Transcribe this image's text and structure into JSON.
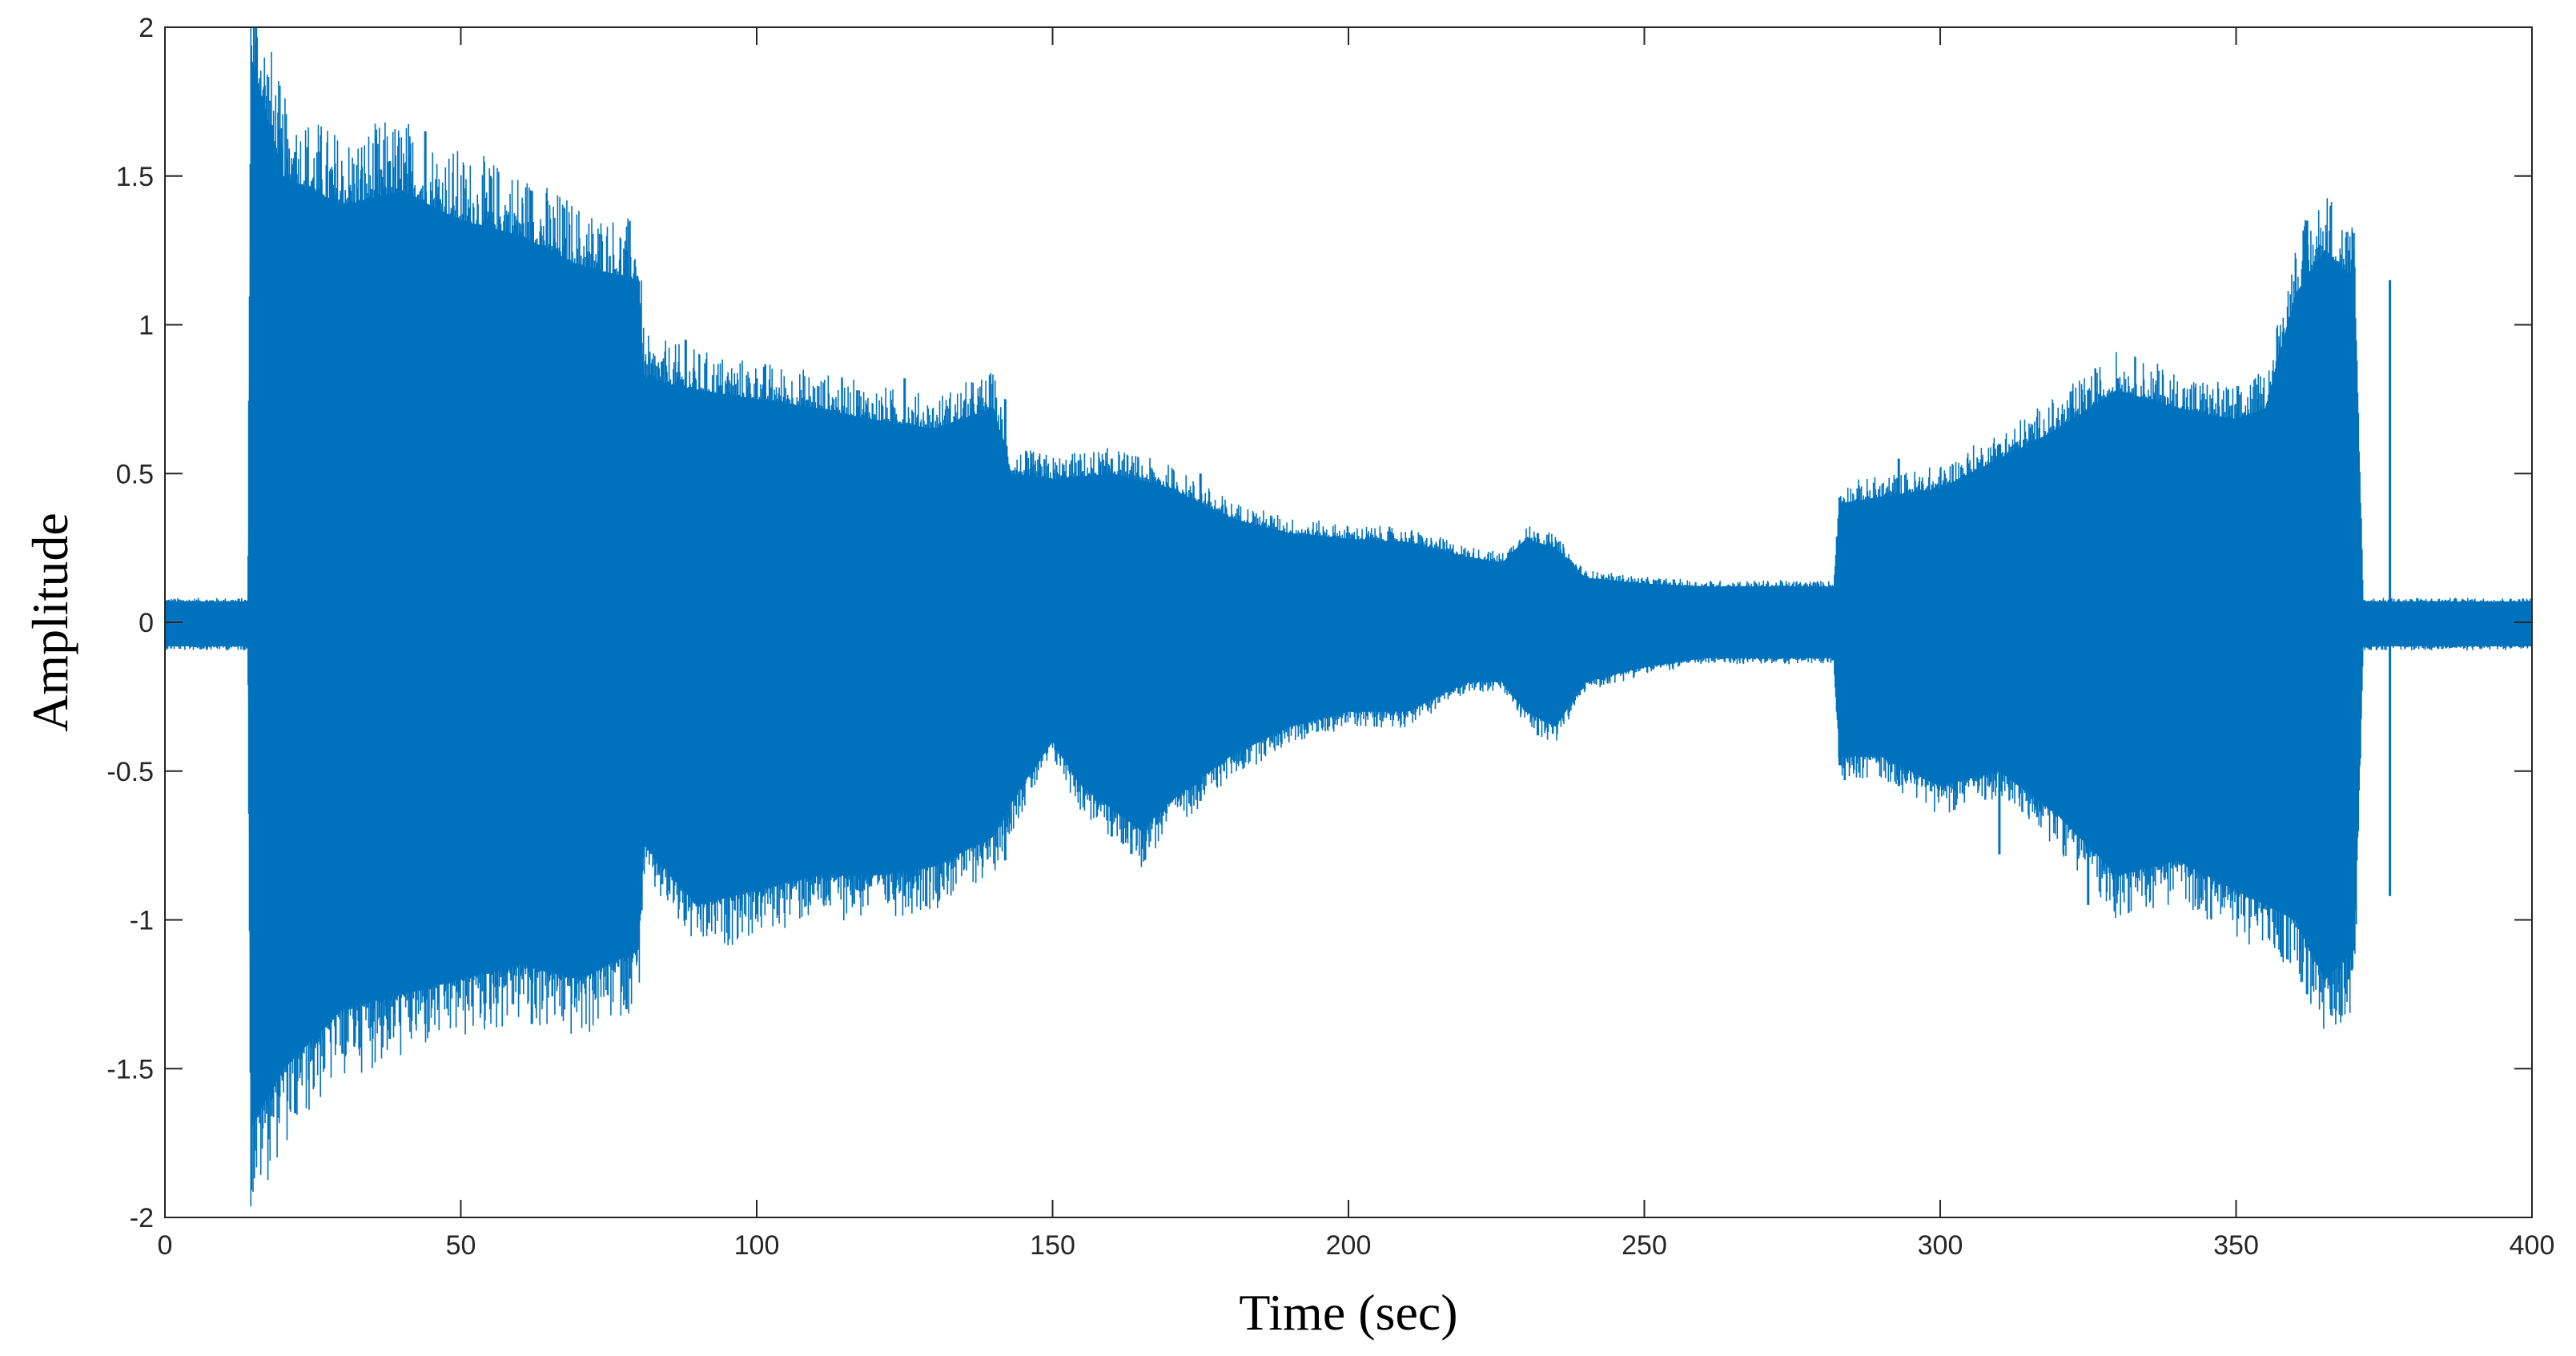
{
  "chart_data": {
    "type": "line",
    "title": "",
    "xlabel": "Time (sec)",
    "ylabel": "Amplitude",
    "xlim": [
      0,
      400
    ],
    "ylim": [
      -2,
      2
    ],
    "xticks": [
      0,
      50,
      100,
      150,
      200,
      250,
      300,
      350,
      400
    ],
    "yticks": [
      2,
      1.5,
      1,
      0.5,
      0,
      -0.5,
      -1,
      -1.5,
      -2
    ],
    "xtick_labels": [
      "0",
      "50",
      "100",
      "150",
      "200",
      "250",
      "300",
      "350",
      "400"
    ],
    "ytick_labels": [
      "2",
      "1.5",
      "1",
      "0.5",
      "0",
      "-0.5",
      "-1",
      "-1.5",
      "-2"
    ],
    "grid": false,
    "legend": "none",
    "series_color": "#0072BD",
    "series": [
      {
        "envelope_upper": [
          [
            0,
            0.07
          ],
          [
            14,
            0.07
          ],
          [
            14.5,
            1.9
          ],
          [
            20,
            1.5
          ],
          [
            30,
            1.4
          ],
          [
            40,
            1.45
          ],
          [
            50,
            1.35
          ],
          [
            60,
            1.3
          ],
          [
            70,
            1.2
          ],
          [
            80,
            1.15
          ],
          [
            81,
            0.82
          ],
          [
            90,
            0.78
          ],
          [
            100,
            0.75
          ],
          [
            110,
            0.72
          ],
          [
            120,
            0.68
          ],
          [
            130,
            0.65
          ],
          [
            140,
            0.72
          ],
          [
            143,
            0.5
          ],
          [
            150,
            0.48
          ],
          [
            160,
            0.5
          ],
          [
            170,
            0.45
          ],
          [
            180,
            0.35
          ],
          [
            190,
            0.3
          ],
          [
            200,
            0.28
          ],
          [
            210,
            0.27
          ],
          [
            220,
            0.22
          ],
          [
            226,
            0.2
          ],
          [
            230,
            0.28
          ],
          [
            235,
            0.25
          ],
          [
            240,
            0.15
          ],
          [
            250,
            0.13
          ],
          [
            260,
            0.12
          ],
          [
            270,
            0.12
          ],
          [
            282,
            0.12
          ],
          [
            283,
            0.4
          ],
          [
            290,
            0.42
          ],
          [
            300,
            0.45
          ],
          [
            310,
            0.55
          ],
          [
            320,
            0.65
          ],
          [
            330,
            0.78
          ],
          [
            340,
            0.72
          ],
          [
            350,
            0.68
          ],
          [
            355,
            0.72
          ],
          [
            360,
            1.1
          ],
          [
            365,
            1.25
          ],
          [
            370,
            1.15
          ],
          [
            371.5,
            0.07
          ],
          [
            400,
            0.07
          ]
        ],
        "envelope_lower": [
          [
            0,
            -0.08
          ],
          [
            14,
            -0.08
          ],
          [
            14.5,
            -1.7
          ],
          [
            20,
            -1.5
          ],
          [
            30,
            -1.3
          ],
          [
            40,
            -1.25
          ],
          [
            50,
            -1.2
          ],
          [
            60,
            -1.15
          ],
          [
            70,
            -1.2
          ],
          [
            80,
            -1.1
          ],
          [
            81,
            -0.75
          ],
          [
            90,
            -0.95
          ],
          [
            100,
            -0.9
          ],
          [
            110,
            -0.85
          ],
          [
            120,
            -0.85
          ],
          [
            130,
            -0.82
          ],
          [
            140,
            -0.72
          ],
          [
            143,
            -0.6
          ],
          [
            150,
            -0.4
          ],
          [
            155,
            -0.55
          ],
          [
            165,
            -0.7
          ],
          [
            170,
            -0.6
          ],
          [
            180,
            -0.45
          ],
          [
            190,
            -0.35
          ],
          [
            200,
            -0.3
          ],
          [
            210,
            -0.3
          ],
          [
            220,
            -0.2
          ],
          [
            226,
            -0.2
          ],
          [
            230,
            -0.3
          ],
          [
            235,
            -0.35
          ],
          [
            240,
            -0.2
          ],
          [
            250,
            -0.15
          ],
          [
            260,
            -0.12
          ],
          [
            270,
            -0.12
          ],
          [
            282,
            -0.12
          ],
          [
            283,
            -0.45
          ],
          [
            290,
            -0.45
          ],
          [
            300,
            -0.55
          ],
          [
            310,
            -0.5
          ],
          [
            320,
            -0.65
          ],
          [
            330,
            -0.85
          ],
          [
            340,
            -0.8
          ],
          [
            350,
            -0.9
          ],
          [
            355,
            -0.95
          ],
          [
            360,
            -1.0
          ],
          [
            365,
            -1.2
          ],
          [
            370,
            -1.1
          ],
          [
            371.5,
            -0.08
          ],
          [
            400,
            -0.08
          ]
        ],
        "peak_spikes": [
          [
            14.7,
            1.88,
            -1.68
          ],
          [
            16,
            1.6,
            -1.55
          ],
          [
            22,
            1.58,
            -1.65
          ],
          [
            30,
            1.5,
            -1.45
          ],
          [
            38,
            1.55,
            -1.4
          ],
          [
            44,
            1.65,
            -1.35
          ],
          [
            55,
            1.5,
            -1.3
          ],
          [
            62,
            1.45,
            -1.35
          ],
          [
            78,
            1.25,
            -1.3
          ],
          [
            88,
            0.95,
            -1.0
          ],
          [
            100,
            0.82,
            -0.98
          ],
          [
            117,
            0.78,
            -0.9
          ],
          [
            125,
            0.82,
            -0.92
          ],
          [
            142,
            0.75,
            -0.8
          ],
          [
            160,
            0.55,
            -0.72
          ],
          [
            175,
            0.5,
            -0.6
          ],
          [
            232,
            0.3,
            -0.38
          ],
          [
            283,
            0.42,
            -0.48
          ],
          [
            293,
            0.55,
            -0.55
          ],
          [
            310,
            0.6,
            -0.78
          ],
          [
            325,
            0.78,
            -0.95
          ],
          [
            330,
            0.82,
            -0.9
          ],
          [
            345,
            0.75,
            -0.85
          ],
          [
            357,
            0.9,
            -1.05
          ],
          [
            362,
            1.35,
            -1.25
          ],
          [
            366,
            1.4,
            -1.3
          ],
          [
            369,
            1.25,
            -1.2
          ],
          [
            376,
            1.15,
            -0.92
          ]
        ]
      }
    ]
  }
}
